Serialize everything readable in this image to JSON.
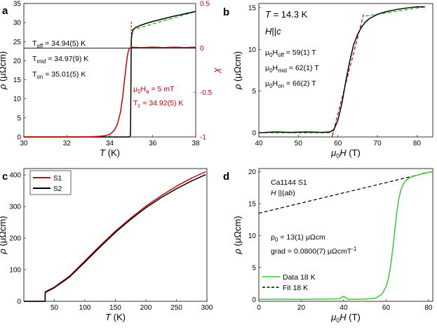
{
  "figure": {
    "panel_labels": [
      "a",
      "b",
      "c",
      "d"
    ]
  },
  "colors": {
    "red": "#cc0000",
    "black": "#000000",
    "green": "#33cc33",
    "green_dash": "#00bb00",
    "dashed_black": "#000000"
  },
  "chart_data": [
    {
      "id": "a",
      "type": "line",
      "xlabel": "T (K)",
      "ylabel": "ρ (μΩcm)",
      "ylabel_right": "χ",
      "xlim": [
        30,
        38
      ],
      "ylim": [
        0,
        35
      ],
      "ylim_right": [
        -1,
        0.5
      ],
      "xticks": [
        30,
        32,
        34,
        36,
        38
      ],
      "yticks": [
        0,
        5,
        10,
        15,
        20,
        25,
        30,
        35
      ],
      "yticks_right": [
        -1,
        -0.5,
        0,
        0.5
      ],
      "xtick_labels": [
        "30",
        "32",
        "34",
        "36",
        "38"
      ],
      "ytick_labels": [
        "0",
        "5",
        "10",
        "15",
        "20",
        "25",
        "30",
        "35"
      ],
      "ytick_right_labels": [
        "-1",
        "-0.5",
        "0",
        "0.5"
      ],
      "annotations_black": [
        "T_off = 34.94(5) K",
        "T_mid = 34.97(9) K",
        "T_on = 35.01(5) K"
      ],
      "annotations_red": [
        "μ0Ha = 5 mT",
        "Tc = 34.92(5) K"
      ],
      "hline_rho": 23.3,
      "series": [
        {
          "name": "ρ(T)",
          "axis": "left",
          "color": "#000000",
          "x": [
            30,
            34.9,
            34.96,
            34.98,
            35.0,
            35.05,
            35.1,
            35.2,
            35.4,
            35.7,
            36.0,
            36.5,
            37.0,
            37.5,
            38.0
          ],
          "y": [
            0,
            0,
            0.3,
            10,
            25.5,
            27.6,
            28.2,
            28.7,
            29.2,
            29.8,
            30.3,
            31.0,
            31.7,
            32.3,
            32.9
          ]
        },
        {
          "name": "χ(T)",
          "axis": "right",
          "color": "#cc0000",
          "x": [
            30,
            32,
            33,
            33.5,
            33.8,
            34.0,
            34.2,
            34.35,
            34.5,
            34.6,
            34.7,
            34.8,
            34.85,
            34.9,
            34.95,
            35.0,
            35.5,
            36,
            36.5,
            37,
            37.5,
            38
          ],
          "y": [
            -1,
            -1,
            -0.998,
            -0.993,
            -0.985,
            -0.97,
            -0.93,
            -0.86,
            -0.72,
            -0.55,
            -0.33,
            -0.12,
            -0.05,
            -0.01,
            0,
            0.01,
            0.005,
            0.01,
            0.005,
            0.01,
            0.005,
            0.01
          ]
        }
      ],
      "fits": [
        {
          "x": [
            30,
            35.0
          ],
          "y": [
            0,
            0
          ],
          "color": "#00bb00"
        },
        {
          "x": [
            35.0,
            38.0
          ],
          "y": [
            28.0,
            32.9
          ],
          "color": "#00bb00"
        }
      ]
    },
    {
      "id": "b",
      "type": "line",
      "xlabel": "μ0H (T)",
      "ylabel": "ρ (μΩcm)",
      "xlim": [
        40,
        84
      ],
      "ylim": [
        -0.5,
        15.5
      ],
      "xticks": [
        40,
        50,
        60,
        70,
        80
      ],
      "yticks": [
        0,
        5,
        10,
        15
      ],
      "xtick_labels": [
        "40",
        "50",
        "60",
        "70",
        "80"
      ],
      "ytick_labels": [
        "0",
        "5",
        "10",
        "15"
      ],
      "title_lines": [
        "T = 14.3 K",
        "H||c"
      ],
      "annotations": [
        "μ0Hoff = 59(1) T",
        "μ0Hmid = 62(1) T",
        "μ0Hon = 66(2) T"
      ],
      "series": [
        {
          "name": "ρ(H)",
          "color": "#000000",
          "x": [
            40,
            44,
            48,
            52,
            56,
            58,
            59,
            60,
            61,
            62,
            63,
            64,
            65,
            66,
            67,
            68,
            70,
            72,
            75,
            78,
            80,
            82
          ],
          "y": [
            0,
            0.1,
            0.05,
            0.1,
            0.05,
            0.1,
            0.4,
            1.5,
            3.5,
            6.2,
            8.6,
            10.6,
            11.8,
            12.7,
            13.3,
            13.7,
            14.2,
            14.5,
            14.8,
            15.0,
            15.1,
            15.1
          ]
        }
      ],
      "fits": [
        {
          "x": [
            40,
            59
          ],
          "y": [
            0,
            0
          ],
          "color": "#00bb00"
        },
        {
          "x": [
            67,
            82
          ],
          "y": [
            14.0,
            15.1
          ],
          "color": "#00bb00"
        },
        {
          "x": [
            58.5,
            66.5
          ],
          "y": [
            -0.5,
            14.2
          ],
          "color": "#cc0000"
        }
      ]
    },
    {
      "id": "c",
      "type": "line",
      "xlabel": "T (K)",
      "ylabel": "ρ (μΩcm)",
      "xlim": [
        0,
        300
      ],
      "ylim": [
        0,
        420
      ],
      "xticks": [
        50,
        100,
        150,
        200,
        250,
        300
      ],
      "yticks": [
        0,
        100,
        200,
        300,
        400
      ],
      "xtick_labels": [
        "50",
        "100",
        "150",
        "200",
        "250",
        "300"
      ],
      "ytick_labels": [
        "0",
        "100",
        "200",
        "300",
        "400"
      ],
      "legend": [
        "S1",
        "S2"
      ],
      "series": [
        {
          "name": "S1",
          "color": "#cc0000",
          "x": [
            0,
            34.9,
            35,
            50,
            75,
            100,
            125,
            150,
            175,
            200,
            225,
            250,
            275,
            298
          ],
          "y": [
            0,
            0,
            30,
            45,
            80,
            128,
            176,
            222,
            263,
            301,
            334,
            364,
            390,
            410
          ]
        },
        {
          "name": "S2",
          "color": "#000000",
          "x": [
            0,
            34.9,
            35,
            50,
            75,
            100,
            125,
            150,
            175,
            200,
            225,
            250,
            275,
            298
          ],
          "y": [
            0,
            0,
            28,
            43,
            77,
            124,
            172,
            218,
            259,
            296,
            328,
            356,
            381,
            401
          ]
        }
      ]
    },
    {
      "id": "d",
      "type": "line",
      "xlabel": "μ0H (T)",
      "ylabel": "ρ (μΩcm)",
      "xlim": [
        0,
        82
      ],
      "ylim": [
        -0.3,
        20.5
      ],
      "xticks": [
        0,
        20,
        40,
        60,
        80
      ],
      "yticks": [
        0,
        5,
        10,
        15,
        20
      ],
      "xtick_labels": [
        "0",
        "20",
        "40",
        "60",
        "80"
      ],
      "ytick_labels": [
        "0",
        "5",
        "10",
        "15",
        "20"
      ],
      "title_lines": [
        "Ca1144 S1",
        "H ||(ab)"
      ],
      "annotations": [
        "ρ0 = 13(1) μΩcm",
        "grad = 0.0800(7) μΩcmT-1"
      ],
      "legend": [
        "Data 18 K",
        "Fit 18 K"
      ],
      "series": [
        {
          "name": "Data 18 K",
          "color": "#33cc33",
          "x": [
            0,
            10,
            20,
            30,
            38,
            40,
            42,
            50,
            55,
            58,
            60,
            61,
            62,
            63,
            64,
            65,
            66,
            67,
            68,
            69,
            70,
            71,
            72,
            74,
            76,
            78,
            80,
            82
          ],
          "y": [
            0,
            0.05,
            0,
            0.05,
            0.1,
            0.5,
            0,
            0.05,
            0.2,
            0.8,
            2.0,
            3.2,
            5.0,
            7.5,
            10.5,
            13.5,
            15.8,
            17.2,
            18.0,
            18.5,
            18.8,
            19.0,
            19.2,
            19.4,
            19.6,
            19.8,
            19.9,
            20.0
          ]
        }
      ],
      "fits": [
        {
          "x": [
            0,
            82
          ],
          "y": [
            13.5,
            20.06
          ],
          "color": "#000000",
          "label": "Fit 18 K"
        }
      ]
    }
  ]
}
